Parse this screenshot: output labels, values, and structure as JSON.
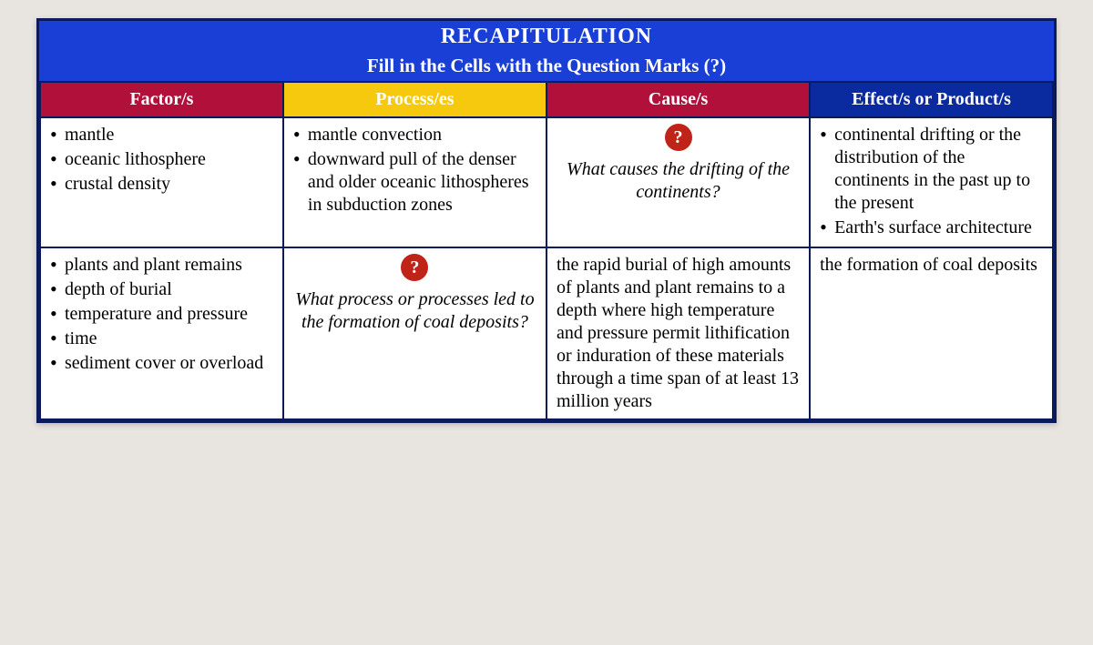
{
  "title": {
    "main": "RECAPITULATION",
    "sub": "Fill in the Cells with the Question Marks (?)"
  },
  "header_bg": "#1a3fd6",
  "columns": [
    {
      "label": "Factor/s",
      "bg": "#b0103a"
    },
    {
      "label": "Process/es",
      "bg": "#f6c90e"
    },
    {
      "label": "Cause/s",
      "bg": "#b0103a"
    },
    {
      "label": "Effect/s or Product/s",
      "bg": "#0a2aa0"
    }
  ],
  "badge_bg": "#c02418",
  "rows": [
    {
      "factor": [
        "mantle",
        "oceanic lithosphere",
        "crustal density"
      ],
      "process": [
        "mantle convection",
        "downward pull of the denser and older oceanic lithospheres in subduction zones"
      ],
      "cause_question": "What causes the drifting of the continents?",
      "effect": [
        "continental drifting or the distribution of the continents in the past up to the present",
        "Earth's surface architecture"
      ]
    },
    {
      "factor": [
        "plants and plant remains",
        "depth of burial",
        "temperature and pressure",
        "time",
        "sediment cover or overload"
      ],
      "process_question": "What process or processes led to the formation of coal deposits?",
      "cause": "the rapid burial of high amounts of plants and plant remains to a depth where high temperature and pressure permit lithification or induration of these materials through a time span of at least 13 million years",
      "effect_plain": "the formation of coal deposits"
    }
  ],
  "q_mark": "?"
}
